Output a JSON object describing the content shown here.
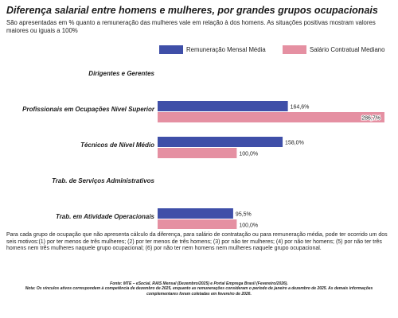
{
  "colors": {
    "mensal": "#3f4fa8",
    "contratual": "#e590a2"
  },
  "chart_data": {
    "type": "bar",
    "orientation": "horizontal",
    "title": "Diferença salarial entre homens e mulheres, por grandes grupos ocupacionais",
    "subtitle": "São apresentadas em % quanto a remuneração das mulheres vale em relação à dos homens. As situações positivas mostram valores maiores ou iguais a 100%",
    "legend_position": "top-right",
    "grid": false,
    "xlim": [
      0,
      300
    ],
    "categories": [
      "Dirigentes e Gerentes",
      "Profissionais em Ocupações Nível Superior",
      "Técnicos de Nível Médio",
      "Trab. de Serviços Administrativos",
      "Trab. em Atividade Operacionais"
    ],
    "series": [
      {
        "name": "Remuneração Mensal Média",
        "values": [
          null,
          164.6,
          158.0,
          null,
          95.5
        ],
        "labels": [
          "",
          "164,6%",
          "158,0%",
          "",
          "95,5%"
        ]
      },
      {
        "name": "Salário Contratual Mediano",
        "values": [
          null,
          286.7,
          100.0,
          null,
          100.0
        ],
        "labels": [
          "",
          "286,7%",
          "100,0%",
          "",
          "100,0%"
        ]
      }
    ]
  },
  "note": "Para cada grupo de ocupação que não apresenta cálculo da diferença, para salário de contratação ou para remuneração média, pode ter ocorrido um dos seis motivos:(1) por ter menos de três mulheres; (2) por ter menos de três homens; (3) por não ter mulheres; (4) por não ter homens; (5) por não ter três homens nem três mulheres naquele grupo ocupacional; (6) por não ter nem homens nem mulheres naquele grupo ocupacional.",
  "source": "Fonte: MTE – eSocial, RAIS Mensal (Dezembro/2025) e Portal Emprega Brasil (Fevereiro/2026).",
  "source_note": "Nota: Os vínculos ativos correspondem à competência de dezembro de 2025, enquanto as remunerações consideram o período de janeiro a dezembro de 2025. As demais informações complementares foram coletadas em fevereiro de 2026."
}
